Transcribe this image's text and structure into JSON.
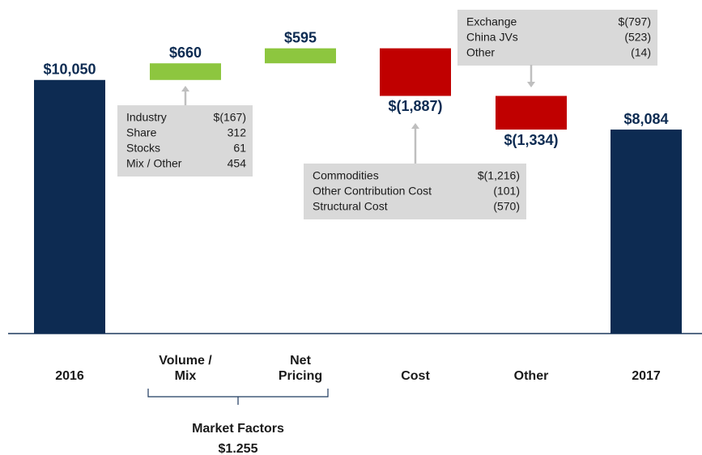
{
  "chart_data": {
    "type": "waterfall",
    "categories": [
      "2016",
      "Volume / Mix",
      "Net Pricing",
      "Cost",
      "Other",
      "2017"
    ],
    "values": [
      10050,
      660,
      595,
      -1887,
      -1334,
      8084
    ],
    "value_labels": [
      "$10,050",
      "$660",
      "$595",
      "$(1,887)",
      "$(1,334)",
      "$8,084"
    ],
    "is_total": [
      true,
      false,
      false,
      false,
      false,
      true
    ],
    "colors": {
      "total": "#0d2b52",
      "increase": "#8dc63f",
      "decrease": "#c00000"
    },
    "ylim": [
      0,
      12000
    ],
    "callouts": [
      {
        "rows": [
          {
            "label": "Industry",
            "value": "$(167)"
          },
          {
            "label": "Share",
            "value": "312"
          },
          {
            "label": "Stocks",
            "value": "61"
          },
          {
            "label": "Mix / Other",
            "value": "454"
          }
        ]
      },
      {
        "rows": [
          {
            "label": "Commodities",
            "value": "$(1,216)"
          },
          {
            "label": "Other Contribution Cost",
            "value": "(101)"
          },
          {
            "label": "Structural Cost",
            "value": "(570)"
          }
        ]
      },
      {
        "rows": [
          {
            "label": "Exchange",
            "value": "$(797)"
          },
          {
            "label": "China JVs",
            "value": "(523)"
          },
          {
            "label": "Other",
            "value": "(14)"
          }
        ]
      }
    ],
    "group": {
      "label": "Market Factors",
      "value_label": "$1.255"
    }
  }
}
